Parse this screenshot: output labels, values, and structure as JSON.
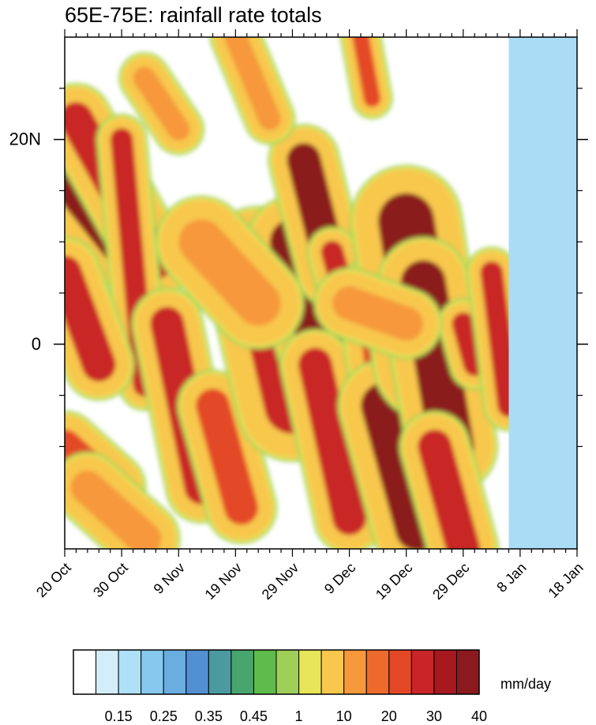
{
  "chart_data": {
    "type": "heatmap",
    "title": "65E-75E: rainfall rate totals",
    "xlabel": "",
    "ylabel": "",
    "x_axis": {
      "start_label": "20 Oct",
      "end_label": "18 Jan",
      "range_days": 90,
      "ticks": [
        {
          "day": 0,
          "label": "20 Oct"
        },
        {
          "day": 10,
          "label": "30 Oct"
        },
        {
          "day": 20,
          "label": "9 Nov"
        },
        {
          "day": 30,
          "label": "19 Nov"
        },
        {
          "day": 40,
          "label": "29 Nov"
        },
        {
          "day": 50,
          "label": "9 Dec"
        },
        {
          "day": 60,
          "label": "19 Dec"
        },
        {
          "day": 70,
          "label": "29 Dec"
        },
        {
          "day": 80,
          "label": "8 Jan"
        },
        {
          "day": 90,
          "label": "18 Jan"
        }
      ],
      "data_end_day": 78
    },
    "y_axis": {
      "range": [
        -20,
        30
      ],
      "major_ticks": [
        {
          "value": 20,
          "label": "20N"
        },
        {
          "value": 0,
          "label": "0"
        }
      ],
      "minor_ticks": [
        -10,
        10,
        25,
        5,
        -5,
        15
      ]
    },
    "missing_color": "#aadcf5",
    "colorbar": {
      "units": "mm/day",
      "colors": [
        "#ffffff",
        "#d4edfa",
        "#aee0f7",
        "#87c9ee",
        "#6aaee0",
        "#5390d2",
        "#4a9aa0",
        "#48a56e",
        "#5ebc4c",
        "#9ed059",
        "#e7e55a",
        "#f8c84e",
        "#f6983b",
        "#ee6a2c",
        "#e34826",
        "#c92528",
        "#a8191f",
        "#8a1a1e"
      ],
      "labels": [
        "0.15",
        "0.25",
        "0.35",
        "0.45",
        "1",
        "10",
        "20",
        "30",
        "40"
      ]
    },
    "rain_bands": [
      {
        "day0": 0,
        "lat0": 17,
        "day1": 10,
        "lat1": 10,
        "width": 4,
        "intensity": 40
      },
      {
        "day0": 2,
        "lat0": 22,
        "day1": 16,
        "lat1": 8,
        "width": 3,
        "intensity": 30
      },
      {
        "day0": 10,
        "lat0": 20,
        "day1": 14,
        "lat1": -4,
        "width": 2,
        "intensity": 30
      },
      {
        "day0": 0,
        "lat0": 7,
        "day1": 6,
        "lat1": -2,
        "width": 3,
        "intensity": 30
      },
      {
        "day0": 0,
        "lat0": -10,
        "day1": 8,
        "lat1": -14,
        "width": 3,
        "intensity": 20
      },
      {
        "day0": 18,
        "lat0": 2,
        "day1": 24,
        "lat1": -14,
        "width": 3,
        "intensity": 30
      },
      {
        "day0": 26,
        "lat0": -6,
        "day1": 31,
        "lat1": -16,
        "width": 3,
        "intensity": 20
      },
      {
        "day0": 34,
        "lat0": 8,
        "day1": 40,
        "lat1": -6,
        "width": 5,
        "intensity": 30
      },
      {
        "day0": 40,
        "lat0": 10,
        "day1": 45,
        "lat1": 0,
        "width": 4,
        "intensity": 40
      },
      {
        "day0": 42,
        "lat0": 18,
        "day1": 47,
        "lat1": 7,
        "width": 3,
        "intensity": 40
      },
      {
        "day0": 44,
        "lat0": -2,
        "day1": 50,
        "lat1": -17,
        "width": 3,
        "intensity": 30
      },
      {
        "day0": 47,
        "lat0": 9,
        "day1": 49,
        "lat1": 5,
        "width": 2,
        "intensity": 30
      },
      {
        "day0": 54,
        "lat0": 5,
        "day1": 58,
        "lat1": -12,
        "width": 3,
        "intensity": 20
      },
      {
        "day0": 56,
        "lat0": -6,
        "day1": 62,
        "lat1": -18,
        "width": 4,
        "intensity": 40
      },
      {
        "day0": 60,
        "lat0": 12,
        "day1": 64,
        "lat1": -2,
        "width": 5,
        "intensity": 40
      },
      {
        "day0": 63,
        "lat0": 6,
        "day1": 68,
        "lat1": -10,
        "width": 4,
        "intensity": 40
      },
      {
        "day0": 65,
        "lat0": -10,
        "day1": 70,
        "lat1": -20,
        "width": 3,
        "intensity": 30
      },
      {
        "day0": 70,
        "lat0": 2,
        "day1": 72,
        "lat1": -2,
        "width": 2,
        "intensity": 30
      },
      {
        "day0": 75,
        "lat0": 7,
        "day1": 78,
        "lat1": -6,
        "width": 2,
        "intensity": 30
      },
      {
        "day0": 14,
        "lat0": 26,
        "day1": 20,
        "lat1": 21,
        "width": 2,
        "intensity": 10
      },
      {
        "day0": 30,
        "lat0": 30,
        "day1": 36,
        "lat1": 22,
        "width": 2,
        "intensity": 10
      },
      {
        "day0": 52,
        "lat0": 30,
        "day1": 54,
        "lat1": 24,
        "width": 1.5,
        "intensity": 20
      },
      {
        "day0": 24,
        "lat0": 10,
        "day1": 34,
        "lat1": 4,
        "width": 4,
        "intensity": 10
      },
      {
        "day0": 4,
        "lat0": -14,
        "day1": 14,
        "lat1": -19,
        "width": 3,
        "intensity": 10
      },
      {
        "day0": 50,
        "lat0": 4,
        "day1": 60,
        "lat1": 2,
        "width": 3,
        "intensity": 10
      }
    ]
  }
}
